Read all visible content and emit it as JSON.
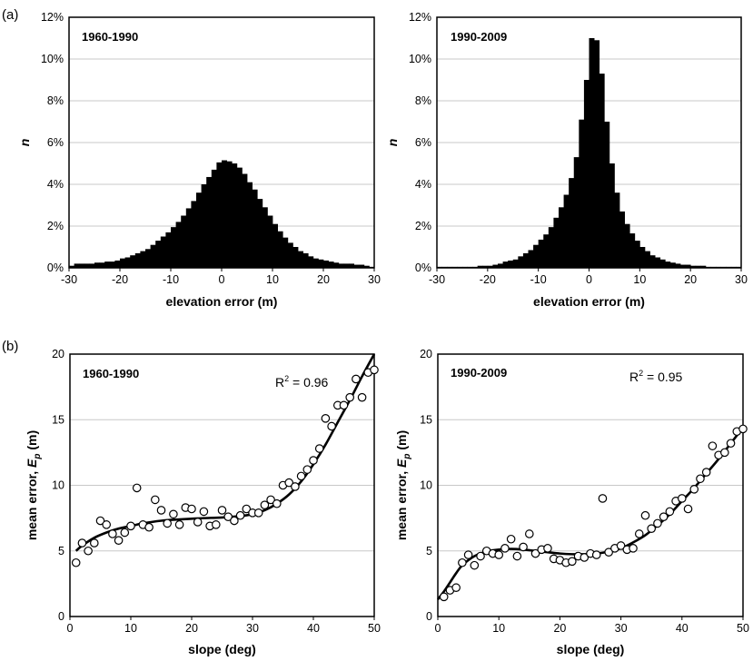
{
  "panel_labels": {
    "a": "(a)",
    "b": "(b)"
  },
  "chart_data": [
    {
      "type": "bar",
      "title": "1960-1990",
      "xlabel": "elevation error (m)",
      "ylabel": "n",
      "xlim": [
        -30,
        30
      ],
      "xticks": [
        -30,
        -20,
        -10,
        0,
        10,
        20,
        30
      ],
      "ylim": [
        0,
        12
      ],
      "yticks": [
        0,
        2,
        4,
        6,
        8,
        10,
        12
      ],
      "ytick_labels": [
        "0%",
        "2%",
        "4%",
        "6%",
        "8%",
        "10%",
        "12%"
      ],
      "bin_width": 1,
      "x": [
        -29.5,
        -28.5,
        -27.5,
        -26.5,
        -25.5,
        -24.5,
        -23.5,
        -22.5,
        -21.5,
        -20.5,
        -19.5,
        -18.5,
        -17.5,
        -16.5,
        -15.5,
        -14.5,
        -13.5,
        -12.5,
        -11.5,
        -10.5,
        -9.5,
        -8.5,
        -7.5,
        -6.5,
        -5.5,
        -4.5,
        -3.5,
        -2.5,
        -1.5,
        -0.5,
        0.5,
        1.5,
        2.5,
        3.5,
        4.5,
        5.5,
        6.5,
        7.5,
        8.5,
        9.5,
        10.5,
        11.5,
        12.5,
        13.5,
        14.5,
        15.5,
        16.5,
        17.5,
        18.5,
        19.5,
        20.5,
        21.5,
        22.5,
        23.5,
        24.5,
        25.5,
        26.5,
        27.5,
        28.5,
        29.5
      ],
      "values": [
        0.1,
        0.2,
        0.2,
        0.2,
        0.2,
        0.25,
        0.25,
        0.3,
        0.3,
        0.35,
        0.45,
        0.5,
        0.6,
        0.7,
        0.8,
        0.9,
        1.1,
        1.3,
        1.5,
        1.7,
        1.95,
        2.2,
        2.5,
        2.85,
        3.2,
        3.6,
        4.0,
        4.35,
        4.7,
        5.05,
        5.15,
        5.1,
        5.0,
        4.8,
        4.5,
        4.1,
        3.75,
        3.3,
        2.9,
        2.5,
        2.1,
        1.75,
        1.45,
        1.2,
        1.0,
        0.8,
        0.7,
        0.55,
        0.45,
        0.4,
        0.35,
        0.3,
        0.25,
        0.2,
        0.2,
        0.2,
        0.15,
        0.15,
        0.1,
        0.05
      ]
    },
    {
      "type": "bar",
      "title": "1990-2009",
      "xlabel": "elevation error (m)",
      "ylabel": "n",
      "xlim": [
        -30,
        30
      ],
      "xticks": [
        -30,
        -20,
        -10,
        0,
        10,
        20,
        30
      ],
      "ylim": [
        0,
        12
      ],
      "yticks": [
        0,
        2,
        4,
        6,
        8,
        10,
        12
      ],
      "ytick_labels": [
        "0%",
        "2%",
        "4%",
        "6%",
        "8%",
        "10%",
        "12%"
      ],
      "bin_width": 1,
      "x": [
        -29.5,
        -28.5,
        -27.5,
        -26.5,
        -25.5,
        -24.5,
        -23.5,
        -22.5,
        -21.5,
        -20.5,
        -19.5,
        -18.5,
        -17.5,
        -16.5,
        -15.5,
        -14.5,
        -13.5,
        -12.5,
        -11.5,
        -10.5,
        -9.5,
        -8.5,
        -7.5,
        -6.5,
        -5.5,
        -4.5,
        -3.5,
        -2.5,
        -1.5,
        -0.5,
        0.5,
        1.5,
        2.5,
        3.5,
        4.5,
        5.5,
        6.5,
        7.5,
        8.5,
        9.5,
        10.5,
        11.5,
        12.5,
        13.5,
        14.5,
        15.5,
        16.5,
        17.5,
        18.5,
        19.5,
        20.5,
        21.5,
        22.5,
        23.5,
        24.5,
        25.5,
        26.5,
        27.5,
        28.5,
        29.5
      ],
      "values": [
        0.05,
        0.05,
        0.05,
        0.05,
        0.05,
        0.05,
        0.05,
        0.05,
        0.1,
        0.1,
        0.1,
        0.15,
        0.2,
        0.3,
        0.35,
        0.4,
        0.55,
        0.7,
        0.85,
        1.1,
        1.35,
        1.6,
        1.95,
        2.4,
        2.9,
        3.5,
        4.3,
        5.3,
        7.1,
        9.0,
        11.0,
        10.9,
        9.3,
        7.0,
        5.0,
        3.6,
        2.7,
        2.1,
        1.65,
        1.3,
        1.0,
        0.8,
        0.6,
        0.5,
        0.4,
        0.3,
        0.25,
        0.2,
        0.15,
        0.15,
        0.1,
        0.1,
        0.1,
        0.05,
        0.05,
        0.05,
        0.05,
        0.05,
        0.05,
        0.05
      ]
    },
    {
      "type": "scatter",
      "title": "1960-1990",
      "annotation": {
        "prefix": "R",
        "sup": "2",
        "suffix": " = 0.96"
      },
      "xlabel": "slope (deg)",
      "ylabel": {
        "main": "mean error, ",
        "symbol": "E",
        "sub": "p",
        "unit": " (m)"
      },
      "xlim": [
        0,
        50
      ],
      "xticks": [
        0,
        10,
        20,
        30,
        40,
        50
      ],
      "ylim": [
        0,
        20
      ],
      "yticks": [
        0,
        5,
        10,
        15,
        20
      ],
      "x": [
        1,
        2,
        3,
        4,
        5,
        6,
        7,
        8,
        9,
        10,
        11,
        12,
        13,
        14,
        15,
        16,
        17,
        18,
        19,
        20,
        21,
        22,
        23,
        24,
        25,
        26,
        27,
        28,
        29,
        30,
        31,
        32,
        33,
        34,
        35,
        36,
        37,
        38,
        39,
        40,
        41,
        42,
        43,
        44,
        45,
        46,
        47,
        48,
        49,
        50
      ],
      "y": [
        4.1,
        5.6,
        5.0,
        5.6,
        7.3,
        7.0,
        6.3,
        5.8,
        6.4,
        6.9,
        9.8,
        7.0,
        6.8,
        8.9,
        8.1,
        7.1,
        7.8,
        7.0,
        8.3,
        8.2,
        7.2,
        8.0,
        6.9,
        7.0,
        8.1,
        7.6,
        7.3,
        7.7,
        8.2,
        7.9,
        7.9,
        8.5,
        8.9,
        8.6,
        10.0,
        10.2,
        9.9,
        10.7,
        11.2,
        11.9,
        12.8,
        15.1,
        14.5,
        16.1,
        16.1,
        16.7,
        18.1,
        16.7,
        18.6,
        18.8
      ],
      "fit": {
        "x": [
          1,
          2,
          4,
          6,
          8,
          10,
          12,
          15,
          18,
          20,
          22,
          25,
          28,
          30,
          32,
          34,
          36,
          38,
          40,
          42,
          44,
          46,
          48,
          50
        ],
        "y": [
          5.0,
          5.4,
          6.0,
          6.4,
          6.7,
          6.9,
          7.1,
          7.3,
          7.4,
          7.45,
          7.5,
          7.55,
          7.65,
          7.8,
          8.1,
          8.6,
          9.3,
          10.3,
          11.6,
          13.1,
          14.8,
          16.5,
          18.3,
          20.0
        ]
      }
    },
    {
      "type": "scatter",
      "title": "1990-2009",
      "annotation": {
        "prefix": "R",
        "sup": "2",
        "suffix": " = 0.95"
      },
      "xlabel": "slope (deg)",
      "ylabel": {
        "main": "mean error, ",
        "symbol": "E",
        "sub": "p",
        "unit": " (m)"
      },
      "xlim": [
        0,
        50
      ],
      "xticks": [
        0,
        10,
        20,
        30,
        40,
        50
      ],
      "ylim": [
        0,
        20
      ],
      "yticks": [
        0,
        5,
        10,
        15,
        20
      ],
      "x": [
        1,
        2,
        3,
        4,
        5,
        6,
        7,
        8,
        9,
        10,
        11,
        12,
        13,
        14,
        15,
        16,
        17,
        18,
        19,
        20,
        21,
        22,
        23,
        24,
        25,
        26,
        27,
        28,
        29,
        30,
        31,
        32,
        33,
        34,
        35,
        36,
        37,
        38,
        39,
        40,
        41,
        42,
        43,
        44,
        45,
        46,
        47,
        48,
        49,
        50
      ],
      "y": [
        1.5,
        2.0,
        2.2,
        4.1,
        4.7,
        3.9,
        4.6,
        5.0,
        4.8,
        4.7,
        5.2,
        5.9,
        4.6,
        5.3,
        6.3,
        4.8,
        5.1,
        5.2,
        4.4,
        4.3,
        4.1,
        4.2,
        4.6,
        4.5,
        4.8,
        4.7,
        9.0,
        4.9,
        5.2,
        5.4,
        5.1,
        5.2,
        6.3,
        7.7,
        6.7,
        7.1,
        7.6,
        8.0,
        8.8,
        9.0,
        8.2,
        9.7,
        10.5,
        11.0,
        13.0,
        12.3,
        12.5,
        13.2,
        14.1,
        14.3
      ],
      "fit": {
        "x": [
          0,
          1,
          2,
          3,
          4,
          6,
          8,
          10,
          12,
          14,
          16,
          18,
          20,
          22,
          24,
          26,
          28,
          30,
          32,
          34,
          36,
          38,
          40,
          42,
          44,
          46,
          48,
          50
        ],
        "y": [
          1.3,
          1.9,
          2.6,
          3.3,
          3.9,
          4.6,
          4.95,
          5.1,
          5.15,
          5.1,
          5.0,
          4.9,
          4.8,
          4.75,
          4.75,
          4.8,
          4.95,
          5.2,
          5.65,
          6.2,
          6.95,
          7.8,
          8.8,
          9.8,
          10.9,
          12.0,
          13.2,
          14.4
        ]
      }
    }
  ]
}
